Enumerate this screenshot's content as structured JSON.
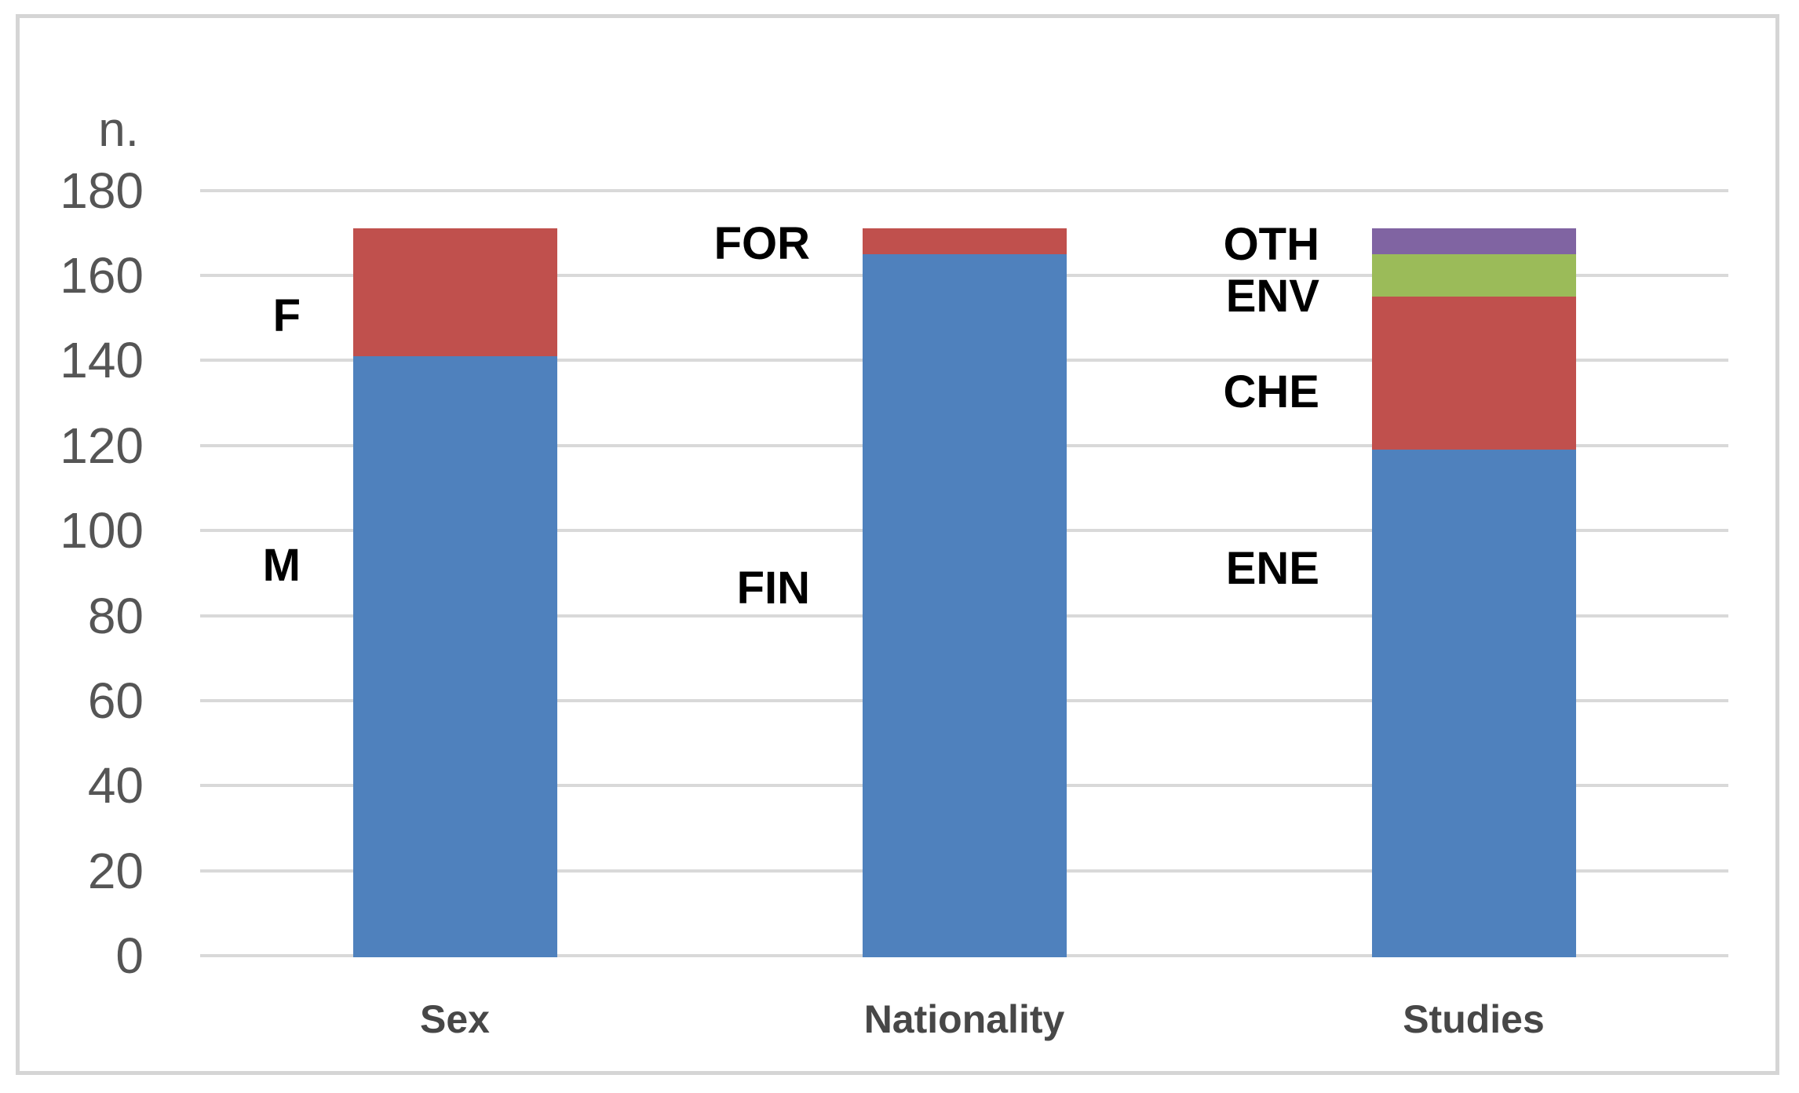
{
  "chart_data": {
    "type": "bar",
    "variant": "stacked-column",
    "title": "",
    "ylabel": "n.",
    "xlabel": "",
    "ylim": [
      0,
      180
    ],
    "yticks": [
      0,
      20,
      40,
      60,
      80,
      100,
      120,
      140,
      160,
      180
    ],
    "grid": true,
    "legend": "none (segments labeled directly on chart)",
    "categories": [
      "Sex",
      "Nationality",
      "Studies"
    ],
    "series_note": "each column stacks bottom-to-top",
    "bars": [
      {
        "category": "Sex",
        "total": 171,
        "segments": [
          {
            "label": "M",
            "value": 141,
            "color": "#4F81BD"
          },
          {
            "label": "F",
            "value": 30,
            "color": "#C0504D"
          }
        ]
      },
      {
        "category": "Nationality",
        "total": 171,
        "segments": [
          {
            "label": "FIN",
            "value": 165,
            "color": "#4F81BD"
          },
          {
            "label": "FOR",
            "value": 6,
            "color": "#C0504D"
          }
        ]
      },
      {
        "category": "Studies",
        "total": 171,
        "segments": [
          {
            "label": "ENE",
            "value": 119,
            "color": "#4F81BD"
          },
          {
            "label": "CHE",
            "value": 36,
            "color": "#C0504D"
          },
          {
            "label": "ENV",
            "value": 10,
            "color": "#9BBB59"
          },
          {
            "label": "OTH",
            "value": 6,
            "color": "#8064A2"
          }
        ]
      }
    ],
    "colors": {
      "blue": "#4F81BD",
      "red": "#C0504D",
      "green": "#9BBB59",
      "purple": "#8064A2",
      "gridline": "#D9D9D9",
      "frame_border": "#D5D5D5",
      "axis_text": "#555555",
      "category_text": "#474747",
      "segment_label_text": "#000000"
    }
  }
}
